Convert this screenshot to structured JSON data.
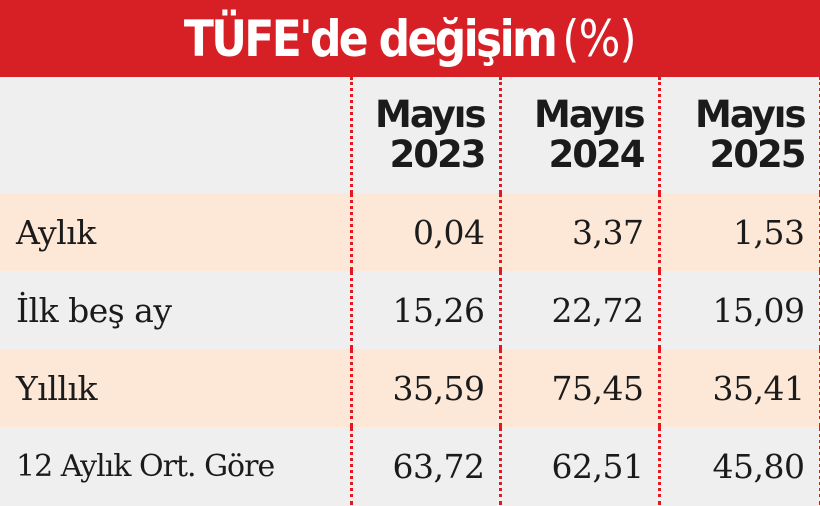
{
  "title": {
    "main": "TÜFE'de değişim",
    "unit": "(%)"
  },
  "colors": {
    "title_bg": "#d71f26",
    "separator": "#e8161e",
    "row_peach": "#fde8d8",
    "row_gray": "#efefef",
    "text": "#1b1b1b"
  },
  "table": {
    "columns": [
      {
        "line1": "Mayıs",
        "line2": "2023"
      },
      {
        "line1": "Mayıs",
        "line2": "2024"
      },
      {
        "line1": "Mayıs",
        "line2": "2025"
      }
    ],
    "rows": [
      {
        "label": "Aylık",
        "values": [
          "0,04",
          "3,37",
          "1,53"
        ]
      },
      {
        "label": "İlk beş ay",
        "values": [
          "15,26",
          "22,72",
          "15,09"
        ]
      },
      {
        "label": "Yıllık",
        "values": [
          "35,59",
          "75,45",
          "35,41"
        ]
      },
      {
        "label": "12 Aylık Ort. Göre",
        "values": [
          "63,72",
          "62,51",
          "45,80"
        ]
      }
    ]
  },
  "chart_data": {
    "type": "table",
    "title": "TÜFE'de değişim (%)",
    "categories": [
      "Aylık",
      "İlk beş ay",
      "Yıllık",
      "12 Aylık Ort. Göre"
    ],
    "series": [
      {
        "name": "Mayıs 2023",
        "values": [
          0.04,
          15.26,
          35.59,
          63.72
        ]
      },
      {
        "name": "Mayıs 2024",
        "values": [
          3.37,
          22.72,
          75.45,
          62.51
        ]
      },
      {
        "name": "Mayıs 2025",
        "values": [
          1.53,
          15.09,
          35.41,
          45.8
        ]
      }
    ]
  }
}
